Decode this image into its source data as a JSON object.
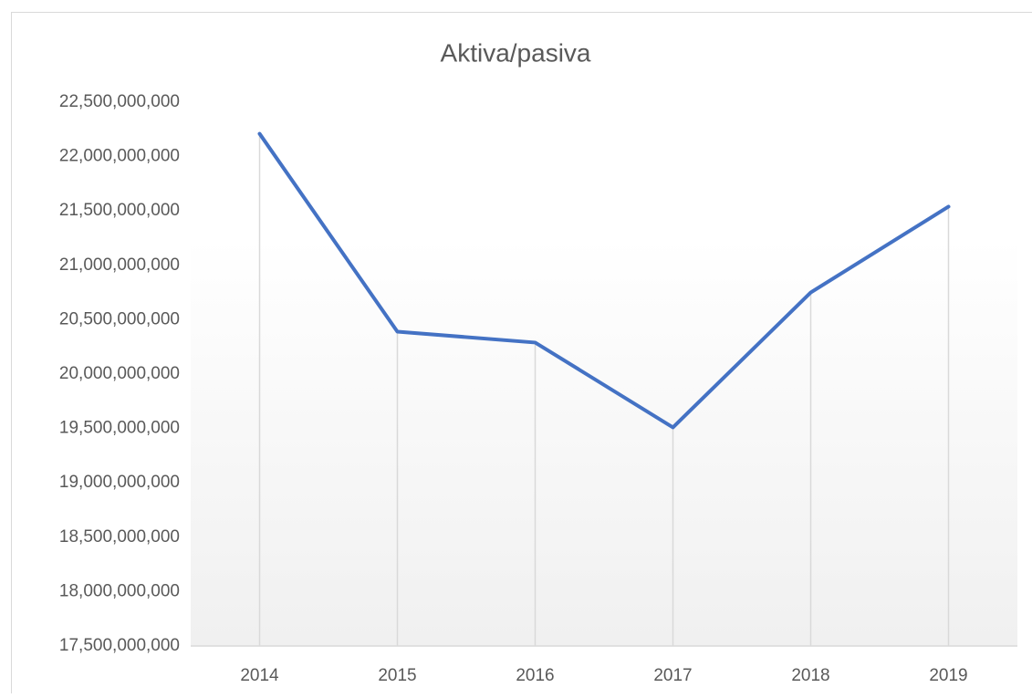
{
  "chart_data": {
    "type": "line",
    "title": "Aktiva/pasiva",
    "categories": [
      "2014",
      "2015",
      "2016",
      "2017",
      "2018",
      "2019"
    ],
    "series": [
      {
        "name": "Aktiva/pasiva",
        "color": "#4472c4",
        "values": [
          22210000000,
          20390000000,
          20290000000,
          19510000000,
          20750000000,
          21540000000
        ]
      }
    ],
    "ylim": [
      17500000000,
      22500000000
    ],
    "yticks": [
      {
        "value": 17500000000,
        "label": "17,500,000,000"
      },
      {
        "value": 18000000000,
        "label": "18,000,000,000"
      },
      {
        "value": 18500000000,
        "label": "18,500,000,000"
      },
      {
        "value": 19000000000,
        "label": "19,000,000,000"
      },
      {
        "value": 19500000000,
        "label": "19,500,000,000"
      },
      {
        "value": 20000000000,
        "label": "20,000,000,000"
      },
      {
        "value": 20500000000,
        "label": "20,500,000,000"
      },
      {
        "value": 21000000000,
        "label": "21,000,000,000"
      },
      {
        "value": 21500000000,
        "label": "21,500,000,000"
      },
      {
        "value": 22000000000,
        "label": "22,000,000,000"
      },
      {
        "value": 22500000000,
        "label": "22,500,000,000"
      }
    ],
    "drop_lines": true
  }
}
